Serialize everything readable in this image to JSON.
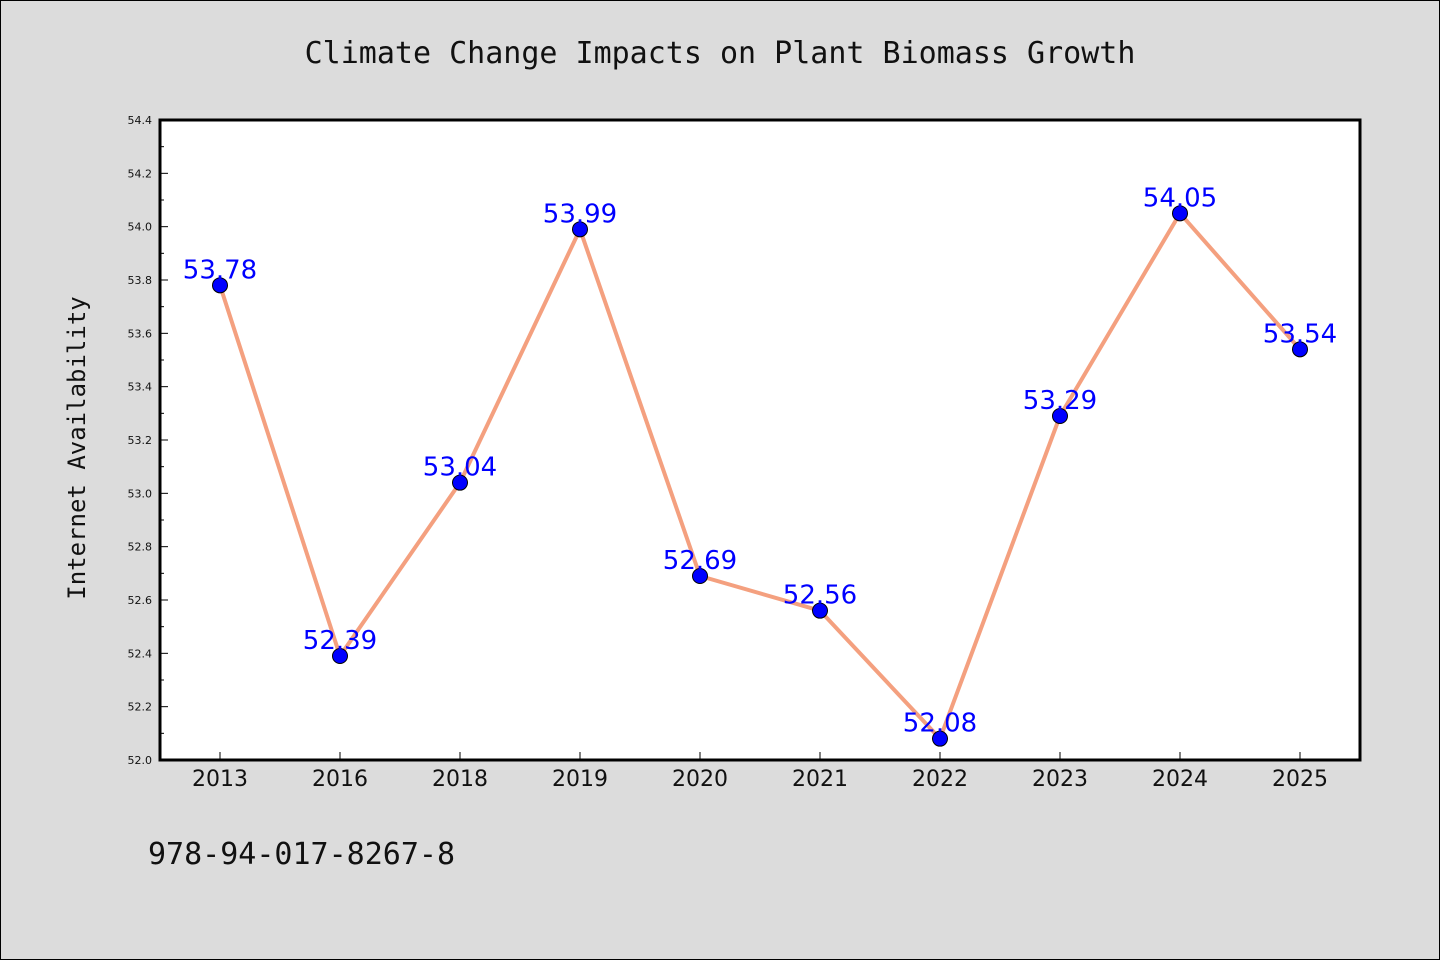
{
  "chart_data": {
    "type": "line",
    "title": "Climate Change Impacts on Plant Biomass Growth",
    "xlabel": "",
    "ylabel": "Internet Availability",
    "categories": [
      "2013",
      "2016",
      "2018",
      "2019",
      "2020",
      "2021",
      "2022",
      "2023",
      "2024",
      "2025"
    ],
    "series": [
      {
        "values": [
          53.78,
          52.39,
          53.04,
          53.99,
          52.69,
          52.56,
          52.08,
          53.29,
          54.05,
          53.54
        ],
        "data_labels": [
          "53.78",
          "52.39",
          "53.04",
          "53.99",
          "52.69",
          "52.56",
          "52.08",
          "53.29",
          "54.05",
          "53.54"
        ]
      }
    ],
    "ylim": [
      52.0,
      54.4
    ],
    "yticks": [
      "52.0",
      "52.2",
      "52.4",
      "52.6",
      "52.8",
      "53.0",
      "53.2",
      "53.4",
      "53.6",
      "53.8",
      "54.0",
      "54.2",
      "54.4"
    ],
    "grid": false,
    "legend": "none",
    "colors": {
      "line": "#f4a07f",
      "marker": "#0000ff",
      "data_label": "#0000ff",
      "background": "#dcdcdc",
      "plot_background": "#ffffff"
    }
  },
  "footer": {
    "text": "978-94-017-8267-8"
  }
}
